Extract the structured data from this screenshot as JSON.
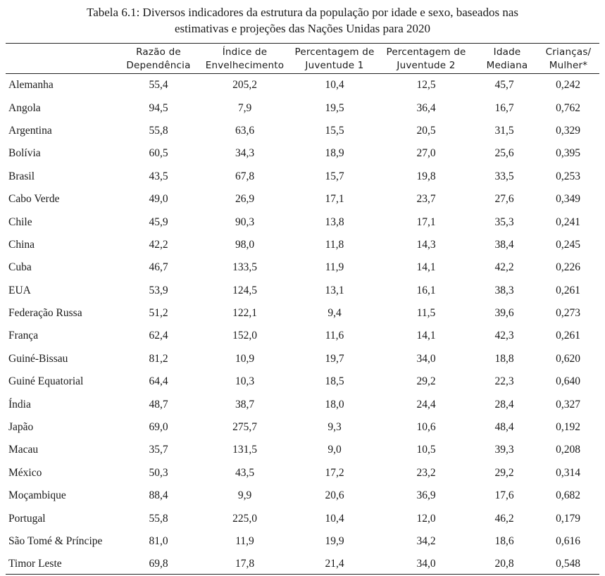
{
  "caption": {
    "line1": "Tabela 6.1: Diversos indicadores da estrutura da população por idade e sexo, baseados nas",
    "line2": "estimativas e projeções das Nações Unidas para 2020"
  },
  "columns": [
    {
      "l1": "Razão de",
      "l2": "Dependência"
    },
    {
      "l1": "Índice de",
      "l2": "Envelhecimento"
    },
    {
      "l1": "Percentagem de",
      "l2": "Juventude 1"
    },
    {
      "l1": "Percentagem de",
      "l2": "Juventude 2"
    },
    {
      "l1": "Idade",
      "l2": "Mediana"
    },
    {
      "l1": "Crianças/",
      "l2": "Mulher*"
    }
  ],
  "rows": [
    {
      "country": "Alemanha",
      "v": [
        "55,4",
        "205,2",
        "10,4",
        "12,5",
        "45,7",
        "0,242"
      ]
    },
    {
      "country": "Angola",
      "v": [
        "94,5",
        "7,9",
        "19,5",
        "36,4",
        "16,7",
        "0,762"
      ]
    },
    {
      "country": "Argentina",
      "v": [
        "55,8",
        "63,6",
        "15,5",
        "20,5",
        "31,5",
        "0,329"
      ]
    },
    {
      "country": "Bolívia",
      "v": [
        "60,5",
        "34,3",
        "18,9",
        "27,0",
        "25,6",
        "0,395"
      ]
    },
    {
      "country": "Brasil",
      "v": [
        "43,5",
        "67,8",
        "15,7",
        "19,8",
        "33,5",
        "0,253"
      ]
    },
    {
      "country": "Cabo Verde",
      "v": [
        "49,0",
        "26,9",
        "17,1",
        "23,7",
        "27,6",
        "0,349"
      ]
    },
    {
      "country": "Chile",
      "v": [
        "45,9",
        "90,3",
        "13,8",
        "17,1",
        "35,3",
        "0,241"
      ]
    },
    {
      "country": "China",
      "v": [
        "42,2",
        "98,0",
        "11,8",
        "14,3",
        "38,4",
        "0,245"
      ]
    },
    {
      "country": "Cuba",
      "v": [
        "46,7",
        "133,5",
        "11,9",
        "14,1",
        "42,2",
        "0,226"
      ]
    },
    {
      "country": "EUA",
      "v": [
        "53,9",
        "124,5",
        "13,1",
        "16,1",
        "38,3",
        "0,261"
      ]
    },
    {
      "country": "Federação Russa",
      "v": [
        "51,2",
        "122,1",
        "9,4",
        "11,5",
        "39,6",
        "0,273"
      ]
    },
    {
      "country": "França",
      "v": [
        "62,4",
        "152,0",
        "11,6",
        "14,1",
        "42,3",
        "0,261"
      ]
    },
    {
      "country": "Guiné-Bissau",
      "v": [
        "81,2",
        "10,9",
        "19,7",
        "34,0",
        "18,8",
        "0,620"
      ]
    },
    {
      "country": "Guiné Equatorial",
      "v": [
        "64,4",
        "10,3",
        "18,5",
        "29,2",
        "22,3",
        "0,640"
      ]
    },
    {
      "country": "Índia",
      "v": [
        "48,7",
        "38,7",
        "18,0",
        "24,4",
        "28,4",
        "0,327"
      ]
    },
    {
      "country": "Japão",
      "v": [
        "69,0",
        "275,7",
        "9,3",
        "10,6",
        "48,4",
        "0,192"
      ]
    },
    {
      "country": "Macau",
      "v": [
        "35,7",
        "131,5",
        "9,0",
        "10,5",
        "39,3",
        "0,208"
      ]
    },
    {
      "country": "México",
      "v": [
        "50,3",
        "43,5",
        "17,2",
        "23,2",
        "29,2",
        "0,314"
      ]
    },
    {
      "country": "Moçambique",
      "v": [
        "88,4",
        "9,9",
        "20,6",
        "36,9",
        "17,6",
        "0,682"
      ]
    },
    {
      "country": "Portugal",
      "v": [
        "55,8",
        "225,0",
        "10,4",
        "12,0",
        "46,2",
        "0,179"
      ]
    },
    {
      "country": "São Tomé & Príncipe",
      "v": [
        "81,0",
        "11,9",
        "19,9",
        "34,2",
        "18,6",
        "0,616"
      ]
    },
    {
      "country": "Timor Leste",
      "v": [
        "69,8",
        "17,8",
        "21,4",
        "34,0",
        "20,8",
        "0,548"
      ]
    }
  ]
}
